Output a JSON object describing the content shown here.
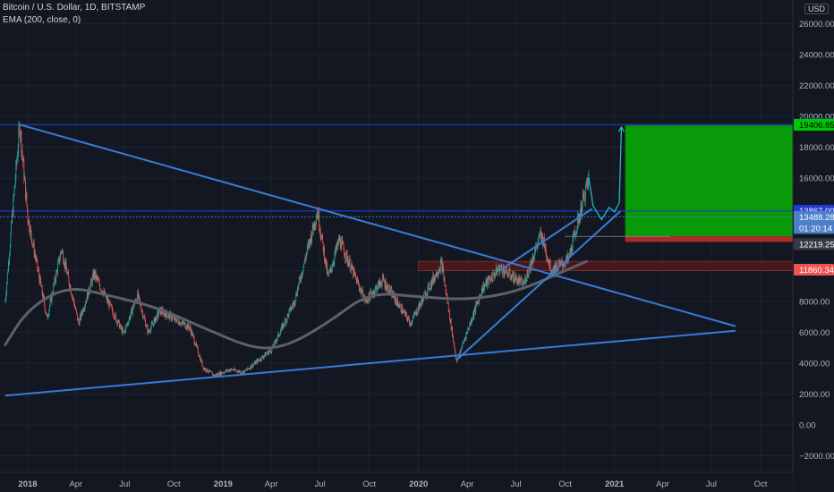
{
  "legend": {
    "symbol": "Bitcoin / U.S. Dollar, 1D, BITSTAMP",
    "indicator": "EMA (200, close, 0)"
  },
  "currency": "USD",
  "colors": {
    "background": "#131722",
    "grid": "#1e222d",
    "up": "#26a69a",
    "down": "#ef5350",
    "trendline": "#3a7bd5",
    "ema": "#5d6068",
    "target_zone": "#089a08",
    "stop_zone": "#b02a2a",
    "level_line": "#1f3bd6",
    "projection": "#21c7c7"
  },
  "chart_data": {
    "type": "candlestick",
    "title": "",
    "xlabel": "",
    "ylabel": "",
    "ylim": [
      -3000,
      27000
    ],
    "y_ticks": [
      "26000.00",
      "24000.00",
      "22000.00",
      "20000.00",
      "18000.00",
      "16000.00",
      "10000.00",
      "8000.00",
      "6000.00",
      "4000.00",
      "2000.00",
      "0.00",
      "−2000.00"
    ],
    "y_tick_values": [
      26000,
      24000,
      22000,
      20000,
      18000,
      16000,
      10000,
      8000,
      6000,
      4000,
      2000,
      0,
      -2000
    ],
    "x_ticks": [
      "2018",
      "Apr",
      "Jul",
      "Oct",
      "2019",
      "Apr",
      "Jul",
      "Oct",
      "2020",
      "Apr",
      "Jul",
      "Oct",
      "2021",
      "Apr",
      "Jul",
      "Oct"
    ],
    "x_tick_bold": [
      true,
      false,
      false,
      false,
      true,
      false,
      false,
      false,
      true,
      false,
      false,
      false,
      true,
      false,
      false,
      false
    ],
    "x_tick_dates": [
      "2018-01-01",
      "2018-04-01",
      "2018-07-01",
      "2018-10-01",
      "2019-01-01",
      "2019-04-01",
      "2019-07-01",
      "2019-10-01",
      "2020-01-01",
      "2020-04-01",
      "2020-07-01",
      "2020-10-01",
      "2021-01-01",
      "2021-04-01",
      "2021-07-01",
      "2021-10-01"
    ],
    "price_path": [
      [
        "2017-11-20",
        8000
      ],
      [
        "2017-12-17",
        19460
      ],
      [
        "2018-01-01",
        13500
      ],
      [
        "2018-02-06",
        6900
      ],
      [
        "2018-03-05",
        11400
      ],
      [
        "2018-04-06",
        6600
      ],
      [
        "2018-05-05",
        9800
      ],
      [
        "2018-06-29",
        5900
      ],
      [
        "2018-07-25",
        8400
      ],
      [
        "2018-08-14",
        6000
      ],
      [
        "2018-09-05",
        7400
      ],
      [
        "2018-10-31",
        6300
      ],
      [
        "2018-11-25",
        3700
      ],
      [
        "2018-12-15",
        3200
      ],
      [
        "2019-01-15",
        3600
      ],
      [
        "2019-02-08",
        3400
      ],
      [
        "2019-04-02",
        4900
      ],
      [
        "2019-05-14",
        8000
      ],
      [
        "2019-06-26",
        13867
      ],
      [
        "2019-07-16",
        9500
      ],
      [
        "2019-08-06",
        12000
      ],
      [
        "2019-09-24",
        8000
      ],
      [
        "2019-10-26",
        9400
      ],
      [
        "2019-12-17",
        6600
      ],
      [
        "2020-02-13",
        10500
      ],
      [
        "2020-03-12",
        4100
      ],
      [
        "2020-04-30",
        8900
      ],
      [
        "2020-06-01",
        10200
      ],
      [
        "2020-07-15",
        9100
      ],
      [
        "2020-08-17",
        12400
      ],
      [
        "2020-09-05",
        10000
      ],
      [
        "2020-10-07",
        10700
      ],
      [
        "2020-11-14",
        16000
      ]
    ],
    "series": [
      {
        "name": "EMA (200, close, 0)",
        "points": [
          [
            "2017-11-20",
            5200
          ],
          [
            "2018-01-01",
            7500
          ],
          [
            "2018-03-15",
            9000
          ],
          [
            "2018-06-01",
            8400
          ],
          [
            "2018-09-01",
            7600
          ],
          [
            "2018-12-01",
            6200
          ],
          [
            "2019-03-01",
            4900
          ],
          [
            "2019-05-01",
            5100
          ],
          [
            "2019-07-15",
            6600
          ],
          [
            "2019-10-01",
            8600
          ],
          [
            "2020-01-01",
            8300
          ],
          [
            "2020-04-01",
            8100
          ],
          [
            "2020-07-01",
            8600
          ],
          [
            "2020-10-01",
            10000
          ],
          [
            "2020-11-10",
            10600
          ]
        ]
      }
    ],
    "trendlines": [
      {
        "from": [
          "2017-12-17",
          19460
        ],
        "to": [
          "2021-08-15",
          6400
        ]
      },
      {
        "from": [
          "2017-11-20",
          1900
        ],
        "to": [
          "2021-08-15",
          6100
        ]
      },
      {
        "from": [
          "2020-03-12",
          4200
        ],
        "to": [
          "2021-01-12",
          13850
        ]
      },
      {
        "from": [
          "2020-06-01",
          10000
        ],
        "to": [
          "2020-11-20",
          14000
        ]
      }
    ],
    "horizontal_levels": [
      {
        "value": 19460.36,
        "label": "19460.36"
      },
      {
        "value": 13867.0,
        "label": "13867.00"
      }
    ],
    "projection_path": [
      [
        "2020-11-14",
        16000
      ],
      [
        "2020-11-22",
        14200
      ],
      [
        "2020-12-08",
        13300
      ],
      [
        "2020-12-22",
        14100
      ],
      [
        "2021-01-01",
        13800
      ],
      [
        "2021-01-10",
        14400
      ],
      [
        "2021-01-14",
        19300
      ]
    ],
    "position": {
      "start": "2021-01-21",
      "end": "2021-12-20",
      "target": 19406.85,
      "entry": 12219.25,
      "stop": 11860.34,
      "target_label": "19406.85",
      "entry_label": "12219.25",
      "stop_label": "11860.34"
    },
    "support_zone": {
      "start": "2020-01-01",
      "end": "2021-12-20",
      "top": 10600,
      "bottom": 10000
    },
    "current_price": {
      "value": 13488.28,
      "label": "13488.28",
      "countdown": "01:20:14"
    }
  }
}
